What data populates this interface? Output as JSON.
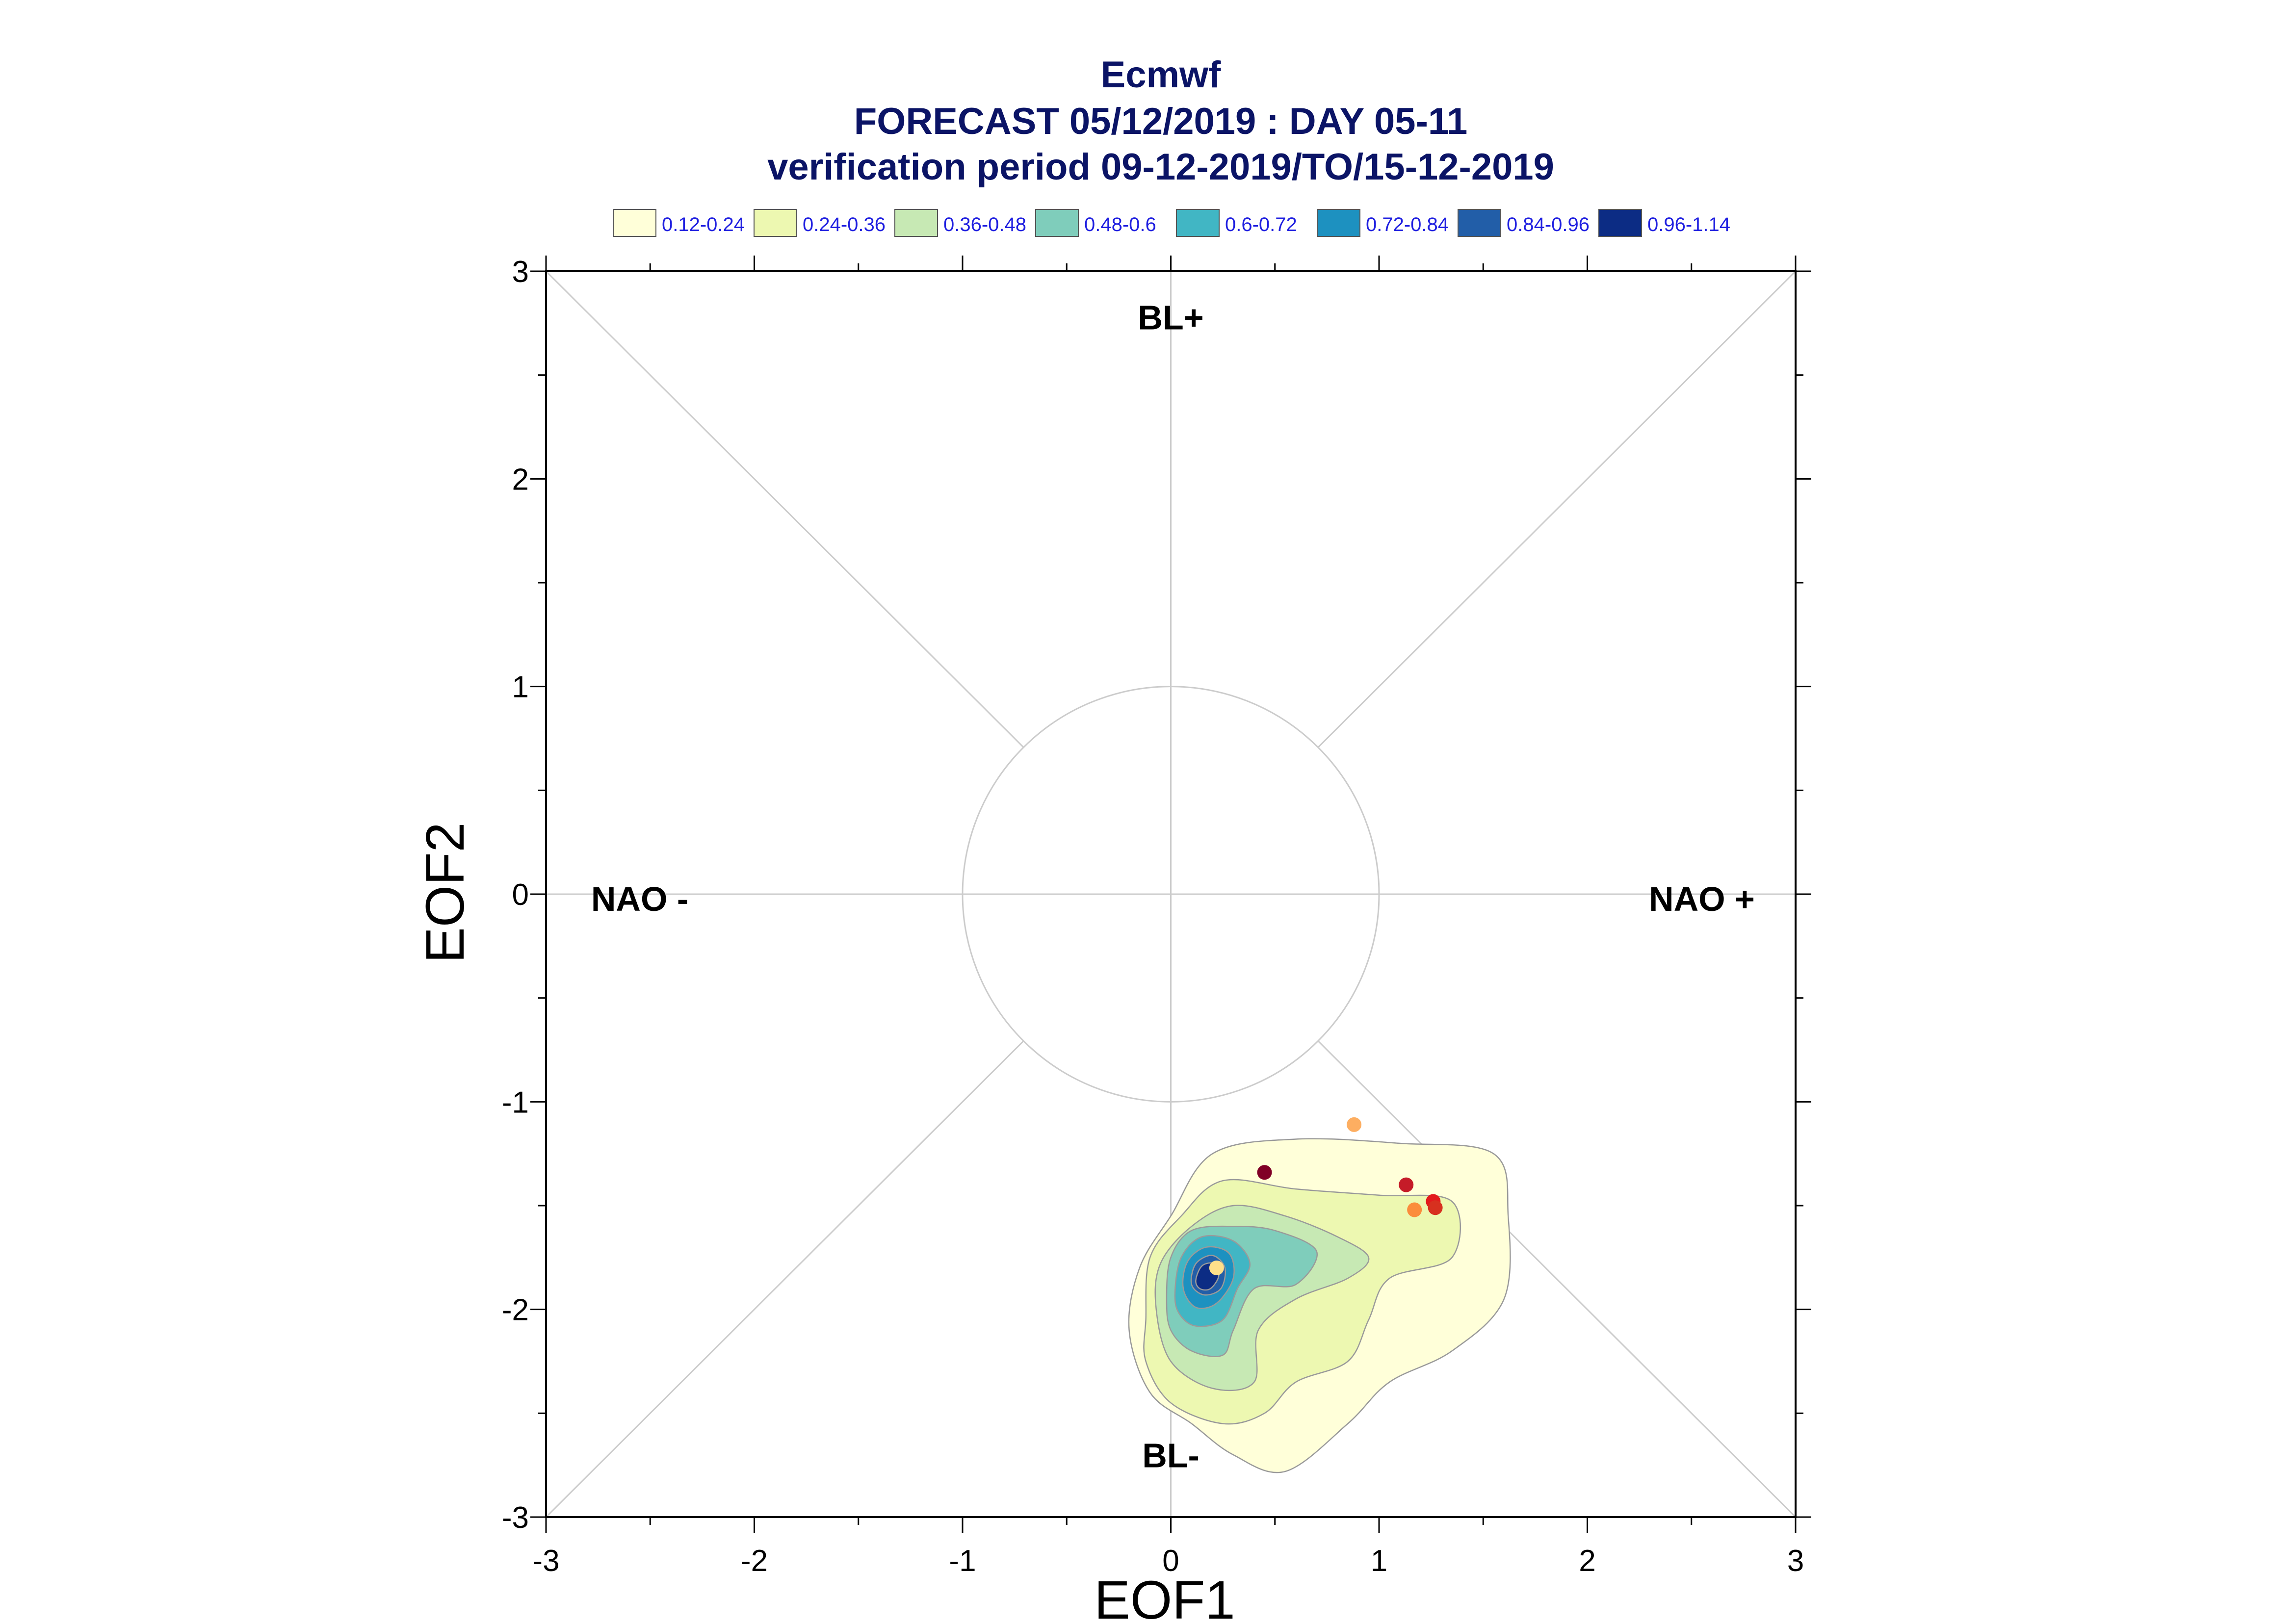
{
  "chart_data": {
    "type": "contour",
    "title": "Ecmwf",
    "subtitle": "FORECAST 05/12/2019 : DAY 05-11",
    "subtitle2": "verification period 09-12-2019/TO/15-12-2019",
    "xlabel": "EOF1",
    "ylabel": "EOF2",
    "xlim": [
      -3,
      3
    ],
    "ylim": [
      -3,
      3
    ],
    "xticks": [
      "-3",
      "-2",
      "-1",
      "0",
      "1",
      "2",
      "3"
    ],
    "yticks": [
      "3",
      "2",
      "1",
      "0",
      "-1",
      "-2",
      "-3"
    ],
    "grid": false,
    "regimes": [
      {
        "label": "BL+",
        "x": 0,
        "y": 2.72
      },
      {
        "label": "BL-",
        "x": 0,
        "y": -2.76
      },
      {
        "label": "NAO -",
        "x": -2.55,
        "y": -0.08
      },
      {
        "label": "NAO +",
        "x": 2.55,
        "y": -0.08
      }
    ],
    "reference_circle_radius": 1.0,
    "legend": {
      "placement": "top",
      "entries": [
        {
          "label": "0.12-0.24",
          "color": "#ffffd9"
        },
        {
          "label": "0.24-0.36",
          "color": "#edf8b1"
        },
        {
          "label": "0.36-0.48",
          "color": "#c7e9b4"
        },
        {
          "label": "0.48-0.6",
          "color": "#7fcdbb"
        },
        {
          "label": "0.6-0.72",
          "color": "#41b6c4"
        },
        {
          "label": "0.72-0.84",
          "color": "#1d91c0"
        },
        {
          "label": "0.84-0.96",
          "color": "#225ea8"
        },
        {
          "label": "0.96-1.14",
          "color": "#0c2c84"
        }
      ]
    },
    "density_levels": [
      {
        "level": "0.12-0.24",
        "color": "#ffffd9",
        "contour": [
          [
            -0.2,
            -2.1
          ],
          [
            -0.15,
            -1.8
          ],
          [
            0.0,
            -1.55
          ],
          [
            0.2,
            -1.25
          ],
          [
            0.6,
            -1.18
          ],
          [
            1.1,
            -1.2
          ],
          [
            1.55,
            -1.25
          ],
          [
            1.62,
            -1.55
          ],
          [
            1.6,
            -1.95
          ],
          [
            1.35,
            -2.2
          ],
          [
            1.05,
            -2.35
          ],
          [
            0.85,
            -2.55
          ],
          [
            0.55,
            -2.78
          ],
          [
            0.3,
            -2.7
          ],
          [
            0.1,
            -2.55
          ],
          [
            -0.1,
            -2.4
          ]
        ]
      },
      {
        "level": "0.24-0.36",
        "color": "#edf8b1",
        "contour": [
          [
            -0.12,
            -2.05
          ],
          [
            -0.1,
            -1.75
          ],
          [
            0.05,
            -1.55
          ],
          [
            0.25,
            -1.38
          ],
          [
            0.6,
            -1.42
          ],
          [
            1.0,
            -1.45
          ],
          [
            1.35,
            -1.48
          ],
          [
            1.35,
            -1.75
          ],
          [
            1.05,
            -1.85
          ],
          [
            0.95,
            -2.05
          ],
          [
            0.85,
            -2.25
          ],
          [
            0.6,
            -2.35
          ],
          [
            0.45,
            -2.5
          ],
          [
            0.25,
            -2.55
          ],
          [
            0.0,
            -2.45
          ],
          [
            -0.12,
            -2.25
          ]
        ]
      },
      {
        "level": "0.36-0.48",
        "color": "#c7e9b4",
        "contour": [
          [
            -0.07,
            -2.0
          ],
          [
            -0.05,
            -1.78
          ],
          [
            0.1,
            -1.6
          ],
          [
            0.3,
            -1.5
          ],
          [
            0.55,
            -1.55
          ],
          [
            0.8,
            -1.65
          ],
          [
            0.95,
            -1.75
          ],
          [
            0.85,
            -1.85
          ],
          [
            0.6,
            -1.95
          ],
          [
            0.42,
            -2.1
          ],
          [
            0.4,
            -2.35
          ],
          [
            0.2,
            -2.38
          ],
          [
            0.0,
            -2.25
          ]
        ]
      },
      {
        "level": "0.48-0.6",
        "color": "#7fcdbb",
        "contour": [
          [
            -0.02,
            -1.95
          ],
          [
            0.0,
            -1.75
          ],
          [
            0.1,
            -1.62
          ],
          [
            0.3,
            -1.6
          ],
          [
            0.5,
            -1.62
          ],
          [
            0.7,
            -1.72
          ],
          [
            0.6,
            -1.88
          ],
          [
            0.4,
            -1.9
          ],
          [
            0.3,
            -2.1
          ],
          [
            0.25,
            -2.22
          ],
          [
            0.1,
            -2.2
          ],
          [
            0.0,
            -2.1
          ]
        ]
      },
      {
        "level": "0.6-0.72",
        "color": "#41b6c4",
        "contour": [
          [
            0.02,
            -1.92
          ],
          [
            0.05,
            -1.75
          ],
          [
            0.15,
            -1.65
          ],
          [
            0.3,
            -1.67
          ],
          [
            0.38,
            -1.78
          ],
          [
            0.32,
            -1.9
          ],
          [
            0.25,
            -2.05
          ],
          [
            0.12,
            -2.08
          ],
          [
            0.04,
            -2.02
          ]
        ]
      },
      {
        "level": "0.72-0.84",
        "color": "#1d91c0",
        "contour": [
          [
            0.06,
            -1.9
          ],
          [
            0.08,
            -1.77
          ],
          [
            0.17,
            -1.7
          ],
          [
            0.28,
            -1.73
          ],
          [
            0.3,
            -1.85
          ],
          [
            0.22,
            -1.97
          ],
          [
            0.12,
            -1.99
          ]
        ]
      },
      {
        "level": "0.84-0.96",
        "color": "#225ea8",
        "contour": [
          [
            0.1,
            -1.88
          ],
          [
            0.12,
            -1.78
          ],
          [
            0.2,
            -1.74
          ],
          [
            0.26,
            -1.8
          ],
          [
            0.24,
            -1.9
          ],
          [
            0.16,
            -1.93
          ]
        ]
      },
      {
        "level": "0.96-1.14",
        "color": "#0c2c84",
        "contour": [
          [
            0.12,
            -1.86
          ],
          [
            0.15,
            -1.79
          ],
          [
            0.21,
            -1.78
          ],
          [
            0.23,
            -1.84
          ],
          [
            0.19,
            -1.9
          ],
          [
            0.14,
            -1.9
          ]
        ]
      }
    ],
    "points": [
      {
        "x": 0.22,
        "y": -1.8,
        "color": "#fde08a"
      },
      {
        "x": 0.45,
        "y": -1.34,
        "color": "#800026"
      },
      {
        "x": 0.88,
        "y": -1.11,
        "color": "#fdae61"
      },
      {
        "x": 1.13,
        "y": -1.4,
        "color": "#c51b28"
      },
      {
        "x": 1.17,
        "y": -1.52,
        "color": "#fb8c3c"
      },
      {
        "x": 1.26,
        "y": -1.48,
        "color": "#e31a1c"
      },
      {
        "x": 1.27,
        "y": -1.51,
        "color": "#d7301f"
      }
    ]
  }
}
